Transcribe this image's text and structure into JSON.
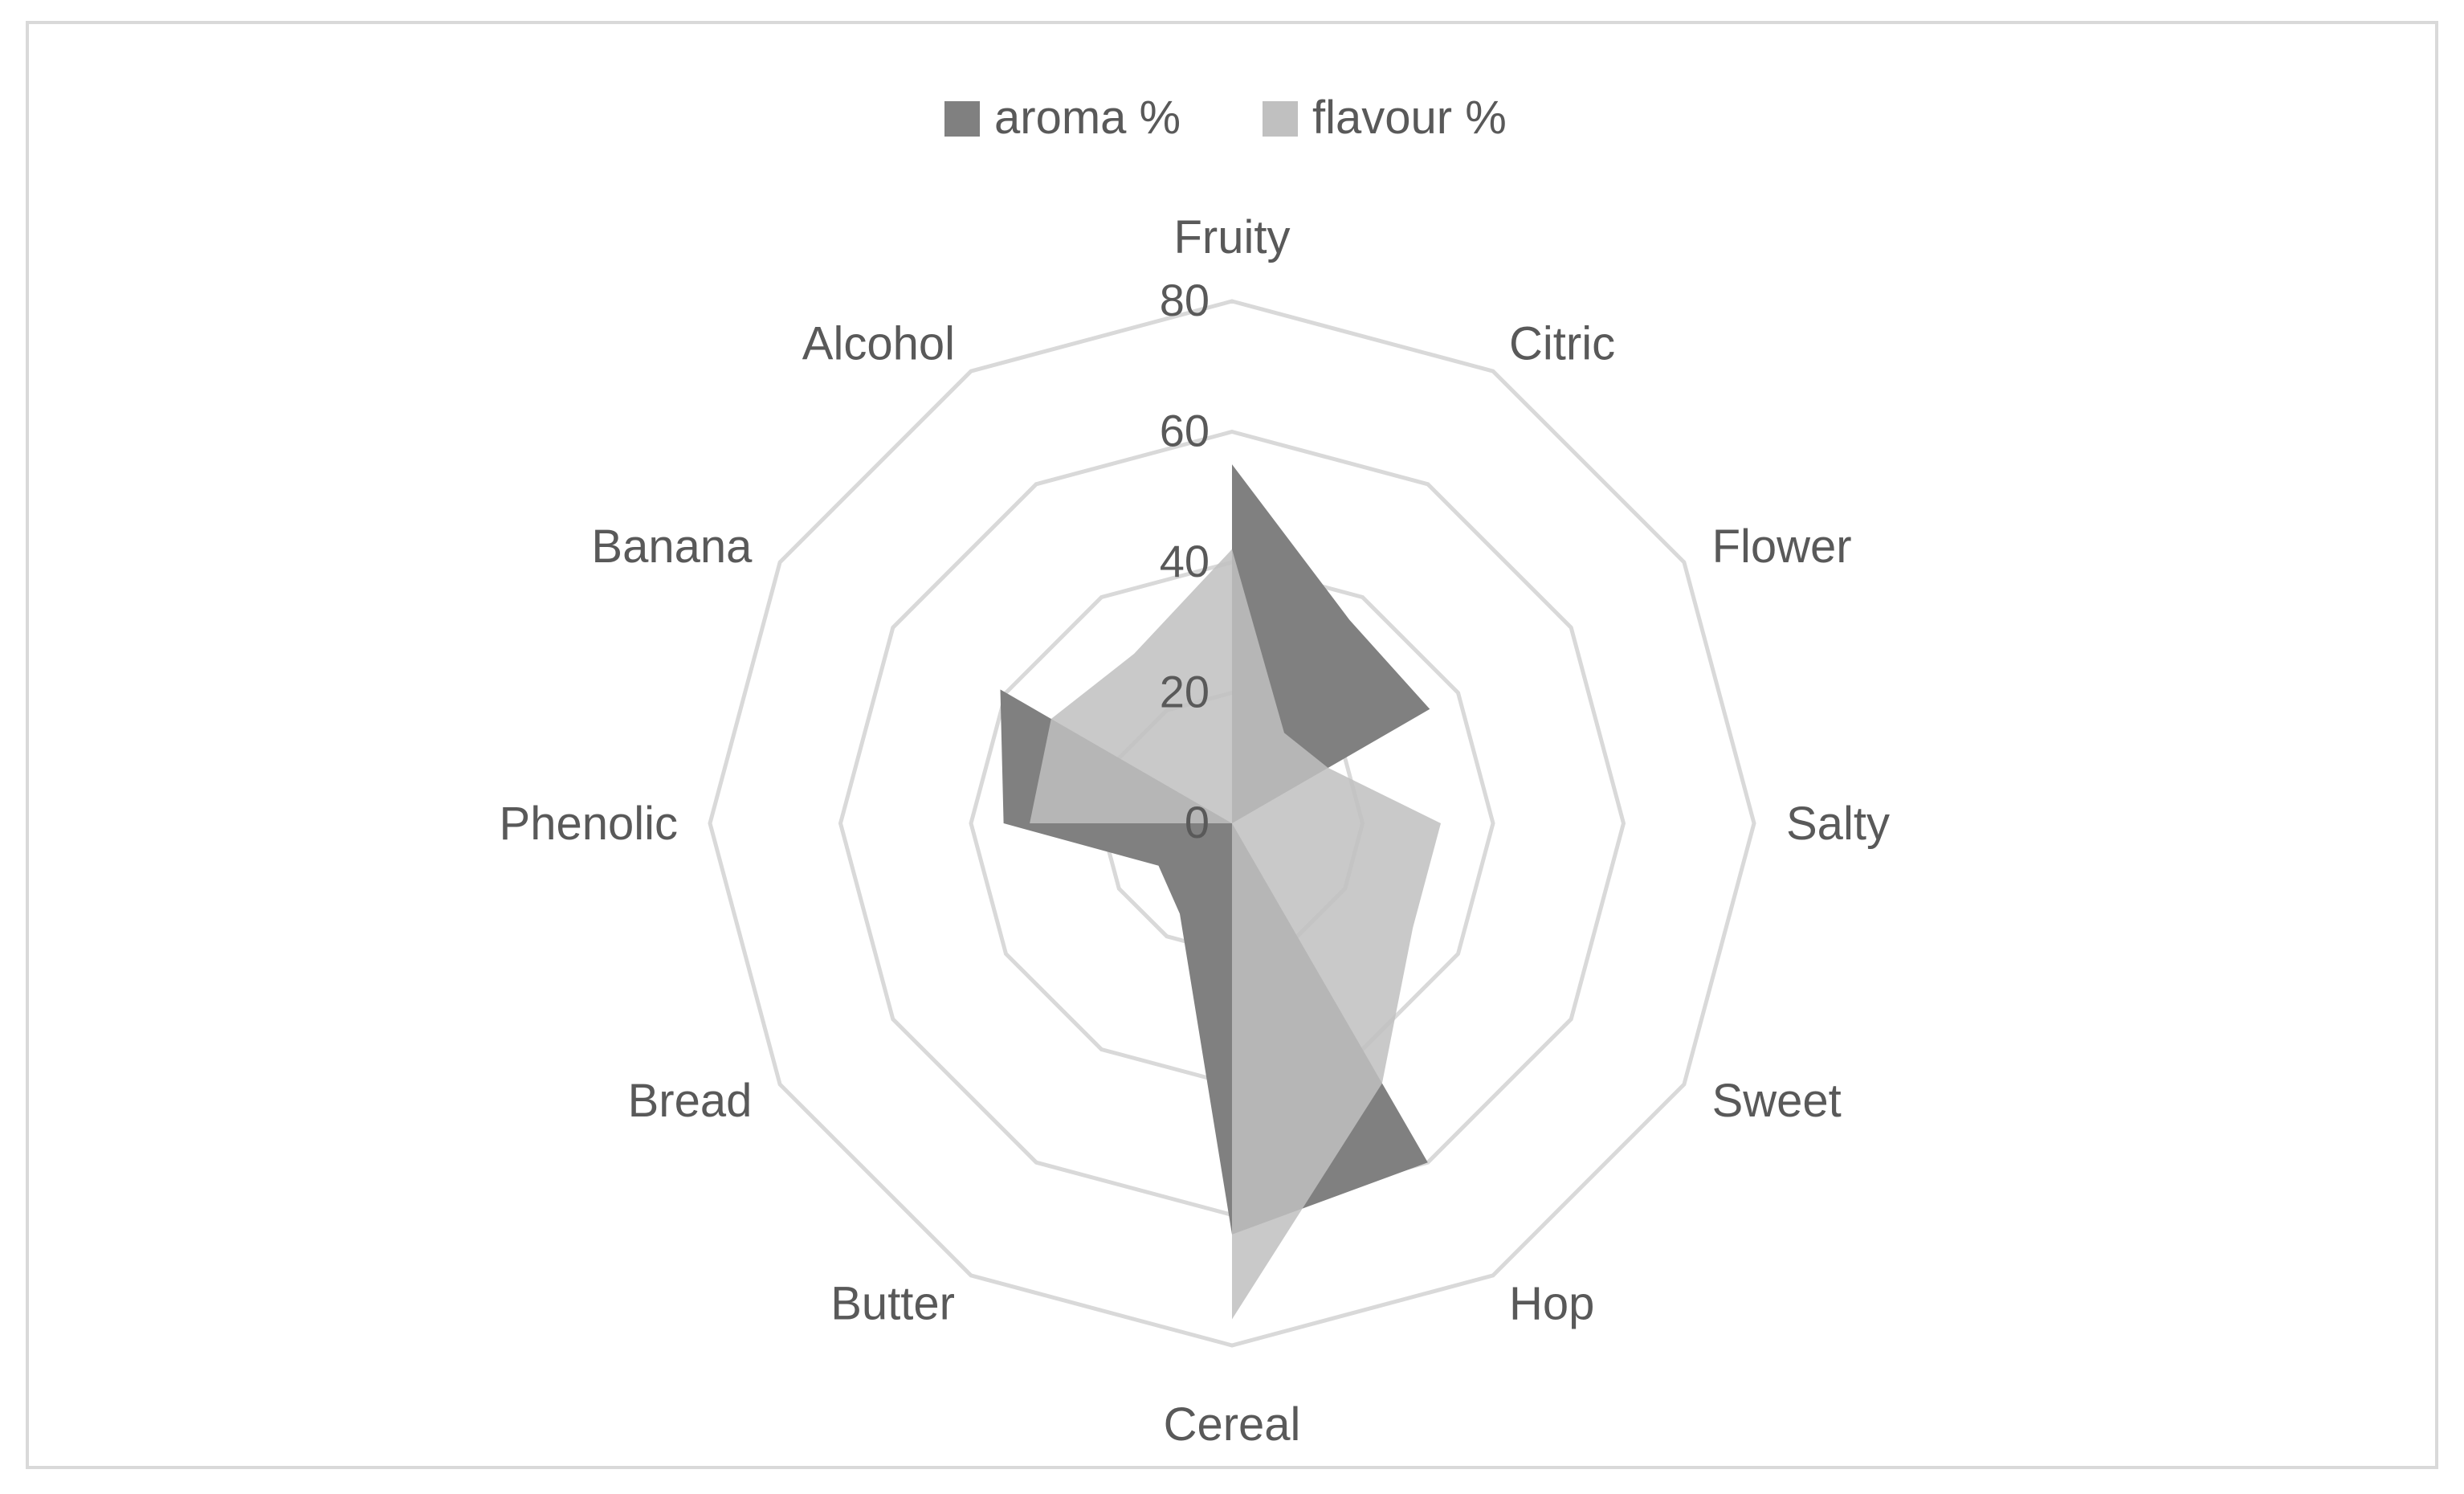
{
  "chart_data": {
    "type": "radar",
    "title": "",
    "categories": [
      "Fruity",
      "Citric",
      "Flower",
      "Salty",
      "Sweet",
      "Hop",
      "Cereal",
      "Butter",
      "Bread",
      "Phenolic",
      "Banana",
      "Alcohol"
    ],
    "series": [
      {
        "name": "aroma %",
        "color": "#808080",
        "opacity": 1.0,
        "values": [
          55,
          36,
          35,
          0,
          0,
          60,
          63,
          16,
          13,
          35,
          41,
          0
        ]
      },
      {
        "name": "flavour %",
        "color": "#c0c0c0",
        "opacity": 0.85,
        "values": [
          42,
          16,
          17,
          32,
          32,
          46,
          76,
          0,
          0,
          31,
          32,
          30
        ]
      }
    ],
    "axis": {
      "min": 0,
      "max": 80,
      "step": 20,
      "tick_labels": [
        "0",
        "20",
        "40",
        "60",
        "80"
      ]
    },
    "legend": {
      "position": "top"
    },
    "grid": true,
    "gridline_color": "#d9d9d9"
  }
}
